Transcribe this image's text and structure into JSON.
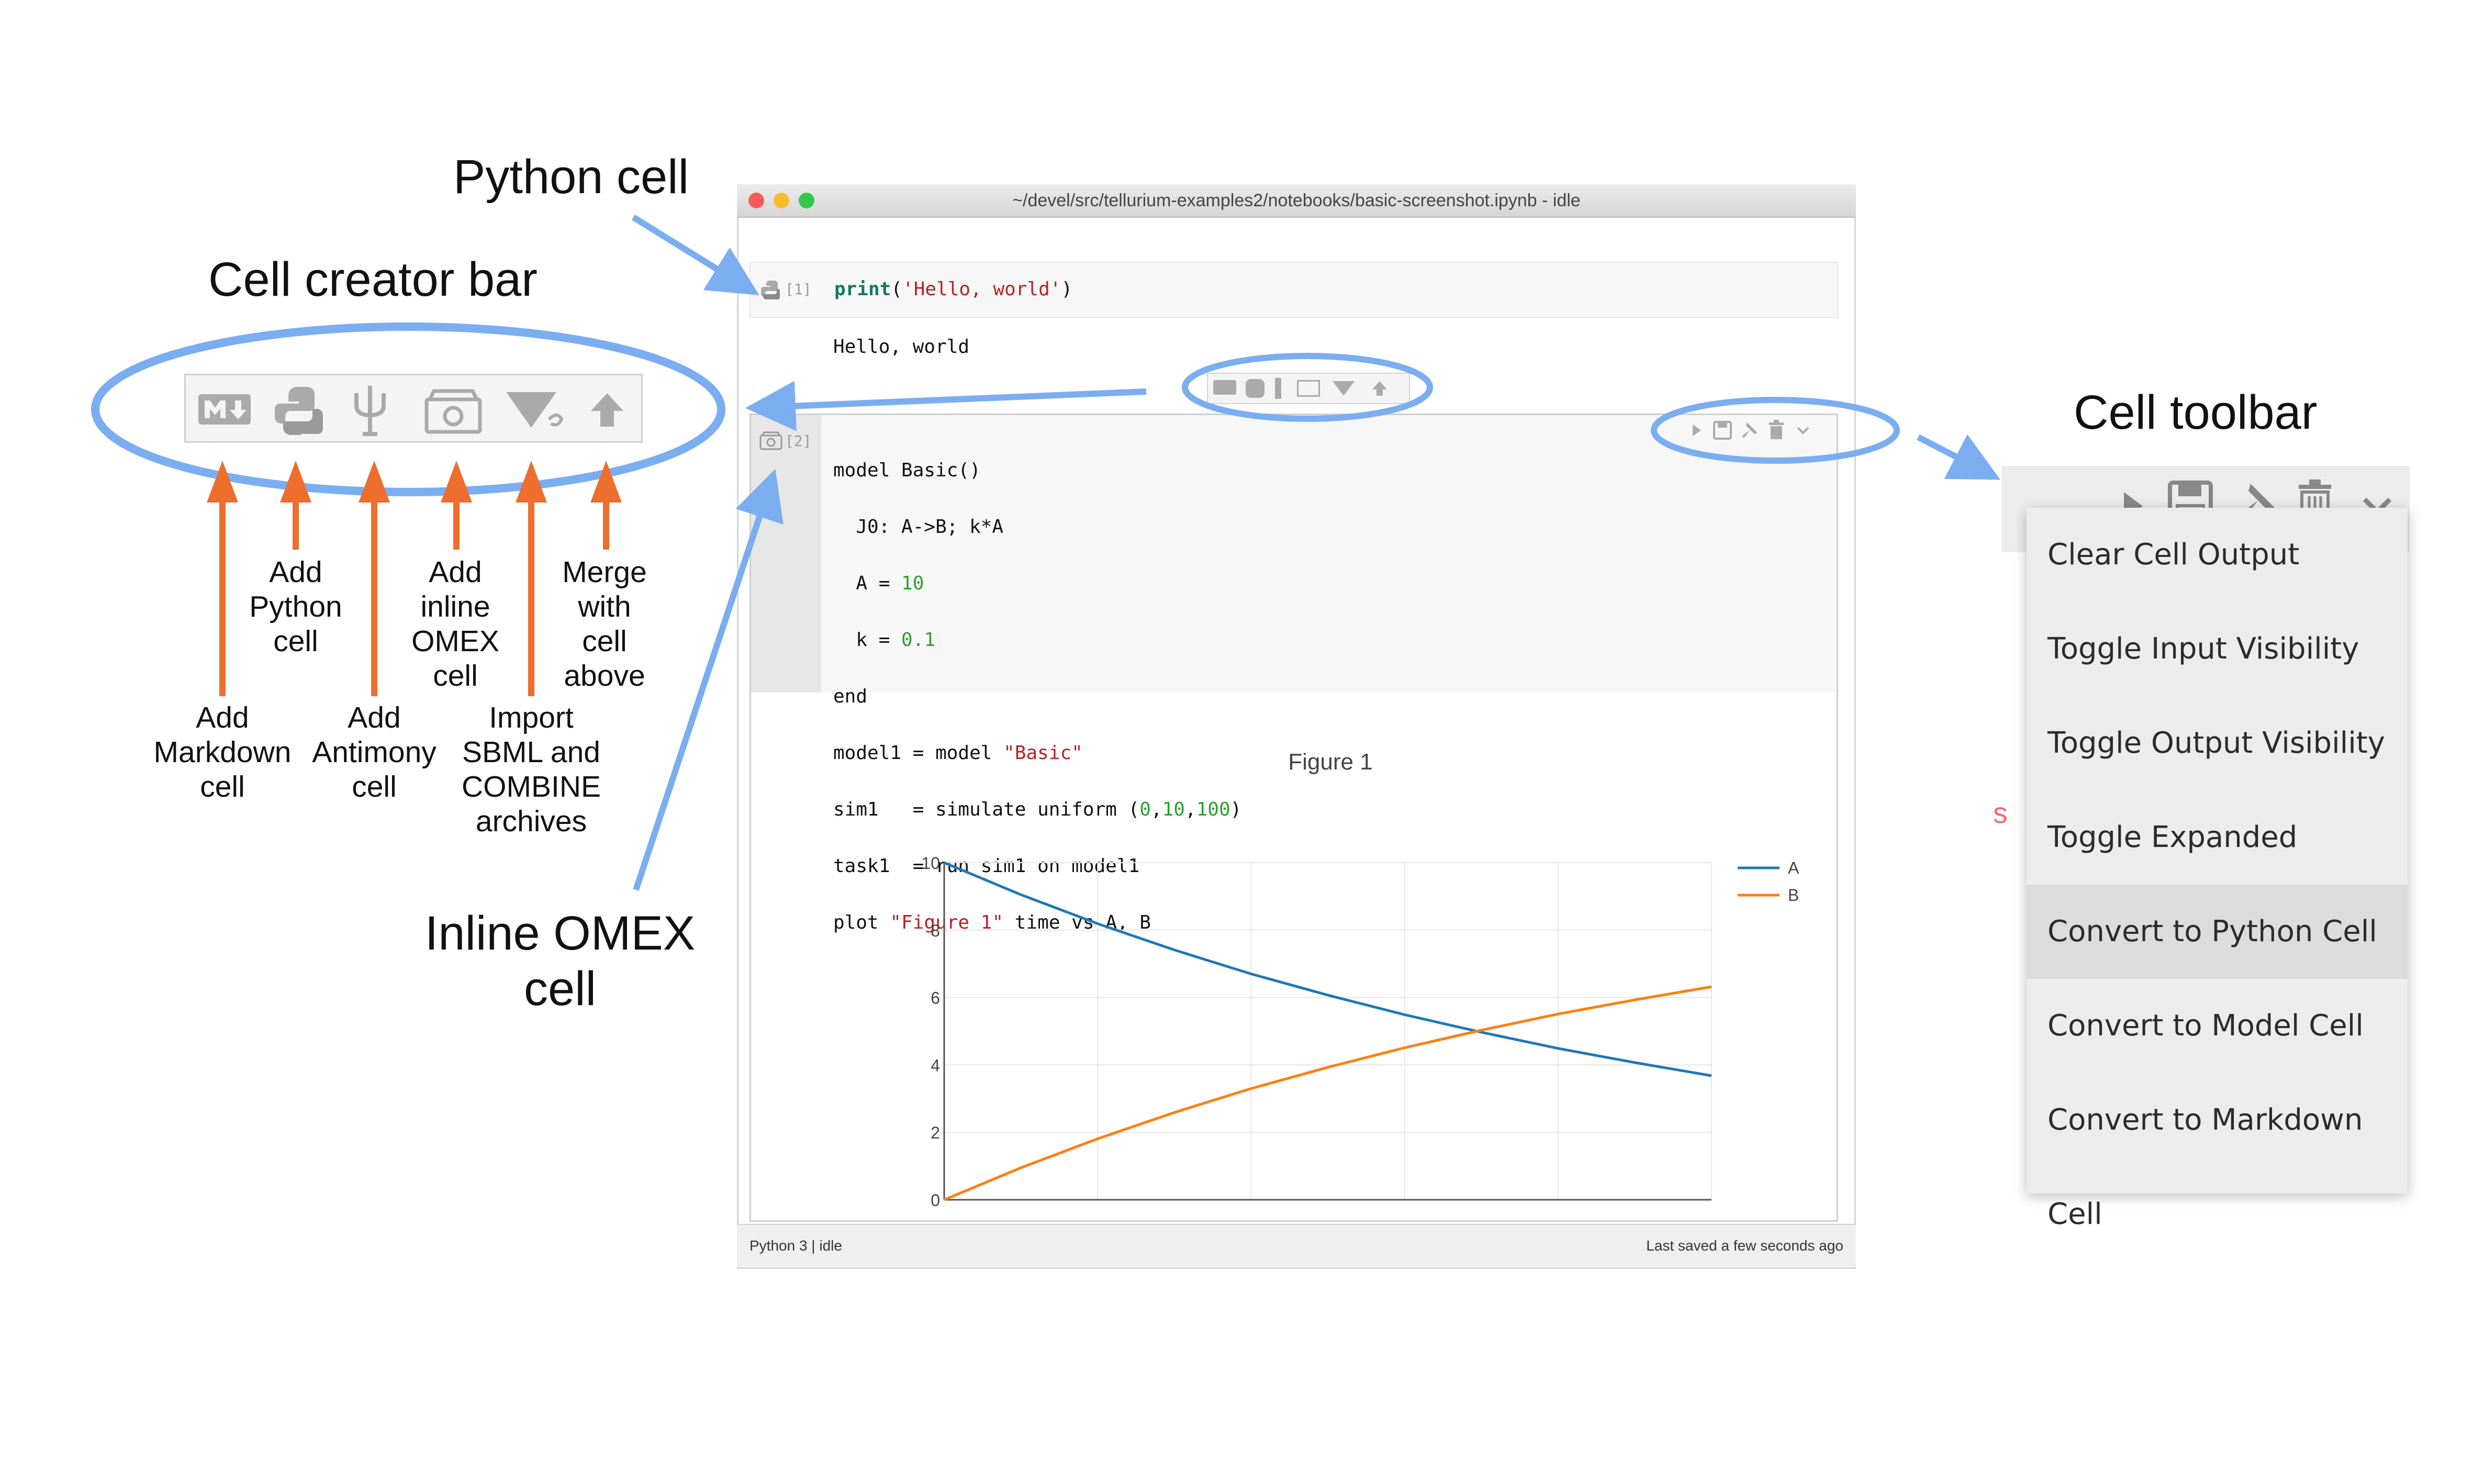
{
  "annotations": {
    "python_cell": "Python cell",
    "cell_creator_bar": "Cell creator bar",
    "cell_toolbar": "Cell toolbar",
    "inline_omex": "Inline OMEX\ncell",
    "add_python": "Add\nPython\ncell",
    "add_inline_omex": "Add\ninline\nOMEX\ncell",
    "merge": "Merge\nwith\ncell\nabove",
    "add_markdown": "Add\nMarkdown\ncell",
    "add_antimony": "Add\nAntimony\ncell",
    "import_sbml": "Import\nSBML and\nCOMBINE\narchives"
  },
  "window": {
    "title": "~/devel/src/tellurium-examples2/notebooks/basic-screenshot.ipynb - idle",
    "status_left": "Python 3 | idle",
    "status_right": "Last saved a few seconds ago"
  },
  "cell1": {
    "prompt": "[1]",
    "code_fn": "print",
    "code_open": "(",
    "code_str": "'Hello, world'",
    "code_close": ")",
    "output": "Hello, world"
  },
  "cell2": {
    "prompt": "[2]",
    "line1": "model Basic()",
    "line2": "  J0: A->B; k*A",
    "line3a": "  A = ",
    "line3b": "10",
    "line4a": "  k = ",
    "line4b": "0.1",
    "line5": "end",
    "line6a": "model1 = model ",
    "line6b": "\"Basic\"",
    "line7a": "sim1   = simulate uniform (",
    "line7b": "0",
    "line7c": ",",
    "line7d": "10",
    "line7e": ",",
    "line7f": "100",
    "line7g": ")",
    "line8": "task1  = run sim1 on model1",
    "line9a": "plot ",
    "line9b": "\"Figure 1\"",
    "line9c": " time vs A, B"
  },
  "menu": {
    "items": [
      "Clear Cell Output",
      "Toggle Input Visibility",
      "Toggle Output Visibility",
      "Toggle Expanded Output",
      "Convert to Python Cell",
      "Convert to Model Cell",
      "Convert to Markdown Cell"
    ],
    "highlighted_index": 4
  },
  "icons": {
    "creator_bar": [
      "markdown-icon",
      "python-icon",
      "antimony-icon",
      "omex-icon",
      "import-icon",
      "merge-up-icon"
    ],
    "toolbar": [
      "run-icon",
      "save-icon",
      "pin-icon",
      "delete-icon",
      "chevron-down-icon"
    ]
  },
  "colors": {
    "annotation_blue": "#7aaef0",
    "annotation_orange": "#ee6f2d",
    "series_A": "#1f77b4",
    "series_B": "#ff7f0e"
  },
  "chart_data": {
    "type": "line",
    "title": "Figure 1",
    "xlabel": "",
    "ylabel": "",
    "x": [
      0,
      1,
      2,
      3,
      4,
      5,
      6,
      7,
      8,
      9,
      10
    ],
    "series": [
      {
        "name": "A",
        "values": [
          10,
          9.05,
          8.19,
          7.41,
          6.7,
          6.07,
          5.49,
          4.97,
          4.49,
          4.07,
          3.68
        ]
      },
      {
        "name": "B",
        "values": [
          0,
          0.95,
          1.81,
          2.59,
          3.3,
          3.93,
          4.51,
          5.03,
          5.51,
          5.93,
          6.32
        ]
      }
    ],
    "yticks": [
      "0",
      "2",
      "4",
      "6",
      "8",
      "10"
    ],
    "xlim": [
      0,
      10
    ],
    "ylim": [
      0,
      10
    ],
    "grid": true,
    "legend": "top-right"
  }
}
